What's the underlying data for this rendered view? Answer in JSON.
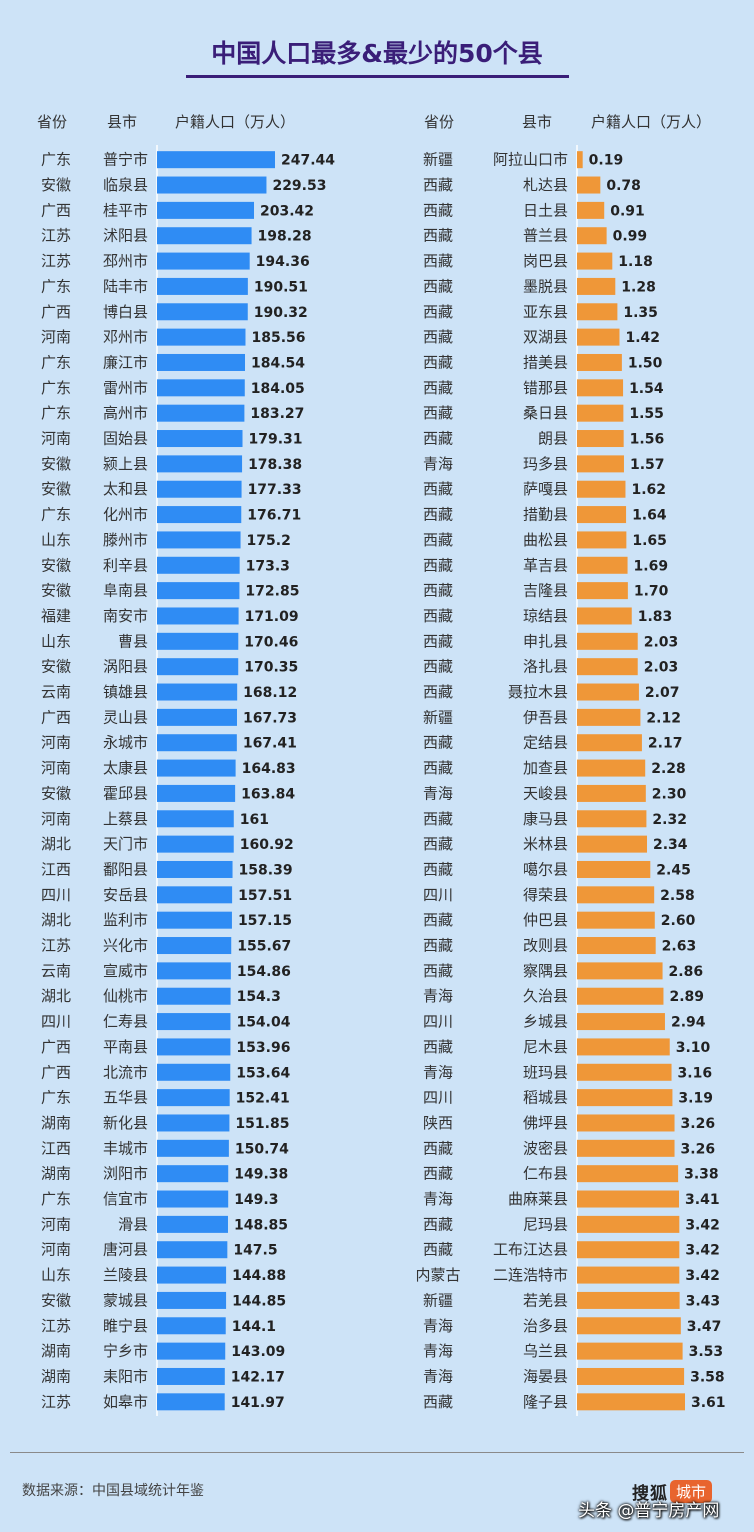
{
  "title": "中国人口最多&最少的50个县",
  "headers": {
    "left": {
      "province": "省份",
      "county": "县市",
      "population": "户籍人口（万人）"
    },
    "right": {
      "province": "省份",
      "county": "县市",
      "population": "户籍人口（万人）"
    }
  },
  "footer": {
    "source": "数据来源：中国县域统计年鉴",
    "logo_word": "搜狐",
    "logo_tag": "城市",
    "watermark": "头条 @普宁房产网"
  },
  "colors": {
    "most_bar": "#2f8cf4",
    "least_bar": "#ef9738",
    "title": "#3a1e78",
    "background": "#cde3f7"
  },
  "chart_data": [
    {
      "type": "bar",
      "orientation": "horizontal",
      "title": "",
      "xlabel": "户籍人口（万人）",
      "series": [
        {
          "name": "户籍人口（万人）",
          "color": "#2f8cf4"
        }
      ],
      "rows": [
        {
          "province": "广东",
          "county": "普宁市",
          "value": "247.44"
        },
        {
          "province": "安徽",
          "county": "临泉县",
          "value": "229.53"
        },
        {
          "province": "广西",
          "county": "桂平市",
          "value": "203.42"
        },
        {
          "province": "江苏",
          "county": "沭阳县",
          "value": "198.28"
        },
        {
          "province": "江苏",
          "county": "邳州市",
          "value": "194.36"
        },
        {
          "province": "广东",
          "county": "陆丰市",
          "value": "190.51"
        },
        {
          "province": "广西",
          "county": "博白县",
          "value": "190.32"
        },
        {
          "province": "河南",
          "county": "邓州市",
          "value": "185.56"
        },
        {
          "province": "广东",
          "county": "廉江市",
          "value": "184.54"
        },
        {
          "province": "广东",
          "county": "雷州市",
          "value": "184.05"
        },
        {
          "province": "广东",
          "county": "高州市",
          "value": "183.27"
        },
        {
          "province": "河南",
          "county": "固始县",
          "value": "179.31"
        },
        {
          "province": "安徽",
          "county": "颍上县",
          "value": "178.38"
        },
        {
          "province": "安徽",
          "county": "太和县",
          "value": "177.33"
        },
        {
          "province": "广东",
          "county": "化州市",
          "value": "176.71"
        },
        {
          "province": "山东",
          "county": "滕州市",
          "value": "175.2"
        },
        {
          "province": "安徽",
          "county": "利辛县",
          "value": "173.3"
        },
        {
          "province": "安徽",
          "county": "阜南县",
          "value": "172.85"
        },
        {
          "province": "福建",
          "county": "南安市",
          "value": "171.09"
        },
        {
          "province": "山东",
          "county": "曹县",
          "value": "170.46"
        },
        {
          "province": "安徽",
          "county": "涡阳县",
          "value": "170.35"
        },
        {
          "province": "云南",
          "county": "镇雄县",
          "value": "168.12"
        },
        {
          "province": "广西",
          "county": "灵山县",
          "value": "167.73"
        },
        {
          "province": "河南",
          "county": "永城市",
          "value": "167.41"
        },
        {
          "province": "河南",
          "county": "太康县",
          "value": "164.83"
        },
        {
          "province": "安徽",
          "county": "霍邱县",
          "value": "163.84"
        },
        {
          "province": "河南",
          "county": "上蔡县",
          "value": "161"
        },
        {
          "province": "湖北",
          "county": "天门市",
          "value": "160.92"
        },
        {
          "province": "江西",
          "county": "鄱阳县",
          "value": "158.39"
        },
        {
          "province": "四川",
          "county": "安岳县",
          "value": "157.51"
        },
        {
          "province": "湖北",
          "county": "监利市",
          "value": "157.15"
        },
        {
          "province": "江苏",
          "county": "兴化市",
          "value": "155.67"
        },
        {
          "province": "云南",
          "county": "宣威市",
          "value": "154.86"
        },
        {
          "province": "湖北",
          "county": "仙桃市",
          "value": "154.3"
        },
        {
          "province": "四川",
          "county": "仁寿县",
          "value": "154.04"
        },
        {
          "province": "广西",
          "county": "平南县",
          "value": "153.96"
        },
        {
          "province": "广西",
          "county": "北流市",
          "value": "153.64"
        },
        {
          "province": "广东",
          "county": "五华县",
          "value": "152.41"
        },
        {
          "province": "湖南",
          "county": "新化县",
          "value": "151.85"
        },
        {
          "province": "江西",
          "county": "丰城市",
          "value": "150.74"
        },
        {
          "province": "湖南",
          "county": "浏阳市",
          "value": "149.38"
        },
        {
          "province": "广东",
          "county": "信宜市",
          "value": "149.3"
        },
        {
          "province": "河南",
          "county": "滑县",
          "value": "148.85"
        },
        {
          "province": "河南",
          "county": "唐河县",
          "value": "147.5"
        },
        {
          "province": "山东",
          "county": "兰陵县",
          "value": "144.88"
        },
        {
          "province": "安徽",
          "county": "蒙城县",
          "value": "144.85"
        },
        {
          "province": "江苏",
          "county": "睢宁县",
          "value": "144.1"
        },
        {
          "province": "湖南",
          "county": "宁乡市",
          "value": "143.09"
        },
        {
          "province": "湖南",
          "county": "耒阳市",
          "value": "142.17"
        },
        {
          "province": "江苏",
          "county": "如皋市",
          "value": "141.97"
        }
      ]
    },
    {
      "type": "bar",
      "orientation": "horizontal",
      "title": "",
      "xlabel": "户籍人口（万人）",
      "series": [
        {
          "name": "户籍人口（万人）",
          "color": "#ef9738"
        }
      ],
      "rows": [
        {
          "province": "新疆",
          "county": "阿拉山口市",
          "value": "0.19"
        },
        {
          "province": "西藏",
          "county": "札达县",
          "value": "0.78"
        },
        {
          "province": "西藏",
          "county": "日土县",
          "value": "0.91"
        },
        {
          "province": "西藏",
          "county": "普兰县",
          "value": "0.99"
        },
        {
          "province": "西藏",
          "county": "岗巴县",
          "value": "1.18"
        },
        {
          "province": "西藏",
          "county": "墨脱县",
          "value": "1.28"
        },
        {
          "province": "西藏",
          "county": "亚东县",
          "value": "1.35"
        },
        {
          "province": "西藏",
          "county": "双湖县",
          "value": "1.42"
        },
        {
          "province": "西藏",
          "county": "措美县",
          "value": "1.50"
        },
        {
          "province": "西藏",
          "county": "错那县",
          "value": "1.54"
        },
        {
          "province": "西藏",
          "county": "桑日县",
          "value": "1.55"
        },
        {
          "province": "西藏",
          "county": "朗县",
          "value": "1.56"
        },
        {
          "province": "青海",
          "county": "玛多县",
          "value": "1.57"
        },
        {
          "province": "西藏",
          "county": "萨嘎县",
          "value": "1.62"
        },
        {
          "province": "西藏",
          "county": "措勤县",
          "value": "1.64"
        },
        {
          "province": "西藏",
          "county": "曲松县",
          "value": "1.65"
        },
        {
          "province": "西藏",
          "county": "革吉县",
          "value": "1.69"
        },
        {
          "province": "西藏",
          "county": "吉隆县",
          "value": "1.70"
        },
        {
          "province": "西藏",
          "county": "琼结县",
          "value": "1.83"
        },
        {
          "province": "西藏",
          "county": "申扎县",
          "value": "2.03"
        },
        {
          "province": "西藏",
          "county": "洛扎县",
          "value": "2.03"
        },
        {
          "province": "西藏",
          "county": "聂拉木县",
          "value": "2.07"
        },
        {
          "province": "新疆",
          "county": "伊吾县",
          "value": "2.12"
        },
        {
          "province": "西藏",
          "county": "定结县",
          "value": "2.17"
        },
        {
          "province": "西藏",
          "county": "加查县",
          "value": "2.28"
        },
        {
          "province": "青海",
          "county": "天峻县",
          "value": "2.30"
        },
        {
          "province": "西藏",
          "county": "康马县",
          "value": "2.32"
        },
        {
          "province": "西藏",
          "county": "米林县",
          "value": "2.34"
        },
        {
          "province": "西藏",
          "county": "噶尔县",
          "value": "2.45"
        },
        {
          "province": "四川",
          "county": "得荣县",
          "value": "2.58"
        },
        {
          "province": "西藏",
          "county": "仲巴县",
          "value": "2.60"
        },
        {
          "province": "西藏",
          "county": "改则县",
          "value": "2.63"
        },
        {
          "province": "西藏",
          "county": "察隅县",
          "value": "2.86"
        },
        {
          "province": "青海",
          "county": "久治县",
          "value": "2.89"
        },
        {
          "province": "四川",
          "county": "乡城县",
          "value": "2.94"
        },
        {
          "province": "西藏",
          "county": "尼木县",
          "value": "3.10"
        },
        {
          "province": "青海",
          "county": "班玛县",
          "value": "3.16"
        },
        {
          "province": "四川",
          "county": "稻城县",
          "value": "3.19"
        },
        {
          "province": "陕西",
          "county": "佛坪县",
          "value": "3.26"
        },
        {
          "province": "西藏",
          "county": "波密县",
          "value": "3.26"
        },
        {
          "province": "西藏",
          "county": "仁布县",
          "value": "3.38"
        },
        {
          "province": "青海",
          "county": "曲麻莱县",
          "value": "3.41"
        },
        {
          "province": "西藏",
          "county": "尼玛县",
          "value": "3.42"
        },
        {
          "province": "西藏",
          "county": "工布江达县",
          "value": "3.42"
        },
        {
          "province": "内蒙古",
          "county": "二连浩特市",
          "value": "3.42"
        },
        {
          "province": "新疆",
          "county": "若羌县",
          "value": "3.43"
        },
        {
          "province": "青海",
          "county": "治多县",
          "value": "3.47"
        },
        {
          "province": "青海",
          "county": "乌兰县",
          "value": "3.53"
        },
        {
          "province": "青海",
          "county": "海晏县",
          "value": "3.58"
        },
        {
          "province": "西藏",
          "county": "隆子县",
          "value": "3.61"
        }
      ]
    }
  ]
}
